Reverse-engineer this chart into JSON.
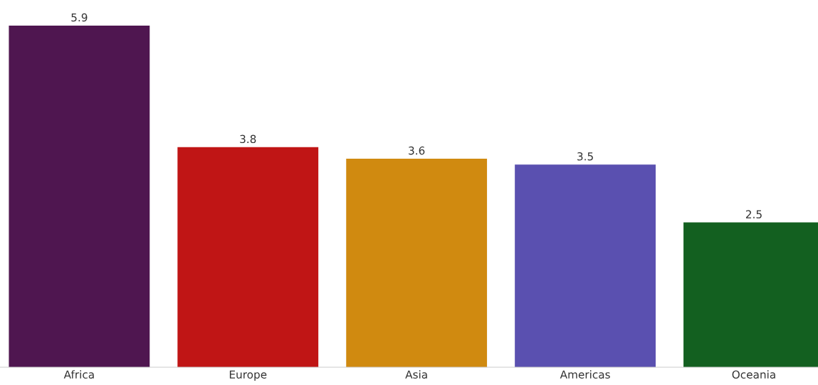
{
  "chart_data": {
    "type": "bar",
    "categories": [
      "Africa",
      "Europe",
      "Asia",
      "Americas",
      "Oceania"
    ],
    "values": [
      5.9,
      3.8,
      3.6,
      3.5,
      2.5
    ],
    "colors": [
      "#4f1650",
      "#c01515",
      "#d08a10",
      "#5a50b0",
      "#136020"
    ],
    "data_labels": true,
    "grid": false,
    "legend": false
  }
}
